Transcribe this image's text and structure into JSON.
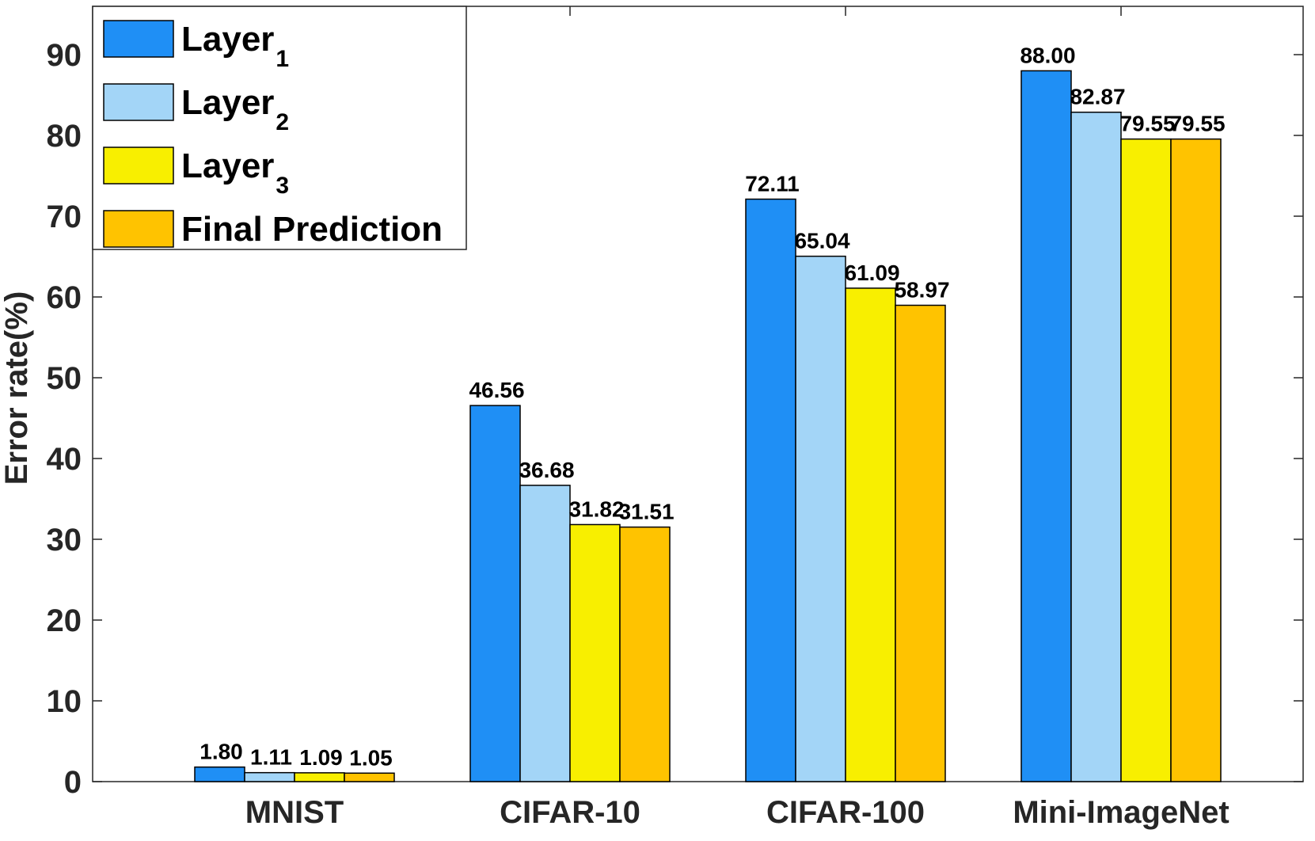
{
  "chart_data": {
    "type": "bar",
    "title": "",
    "xlabel": "",
    "ylabel": "Error rate(%)",
    "ylim": [
      0,
      100
    ],
    "yticks": [
      0,
      10,
      20,
      30,
      40,
      50,
      60,
      70,
      80,
      90
    ],
    "grid": false,
    "legend_position": "top-left",
    "categories": [
      "MNIST",
      "CIFAR-10",
      "CIFAR-100",
      "Mini-ImageNet"
    ],
    "series": [
      {
        "name": "Layer",
        "subscript": "1",
        "color": "#1f8ff5",
        "values": [
          1.8,
          46.56,
          72.11,
          88.0
        ],
        "labels": [
          "1.80",
          "46.56",
          "72.11",
          "88.00"
        ]
      },
      {
        "name": "Layer",
        "subscript": "2",
        "color": "#a3d5f7",
        "values": [
          1.11,
          36.68,
          65.04,
          82.87
        ],
        "labels": [
          "1.11",
          "36.68",
          "65.04",
          "82.87"
        ]
      },
      {
        "name": "Layer",
        "subscript": "3",
        "color": "#f8ef00",
        "values": [
          1.09,
          31.82,
          61.09,
          79.55
        ],
        "labels": [
          "1.09",
          "31.82",
          "61.09",
          "79.55"
        ]
      },
      {
        "name": "Final Prediction",
        "subscript": "",
        "color": "#ffc300",
        "values": [
          1.05,
          31.51,
          58.97,
          79.55
        ],
        "labels": [
          "1.05",
          "31.51",
          "58.97",
          "79.55"
        ]
      }
    ]
  }
}
